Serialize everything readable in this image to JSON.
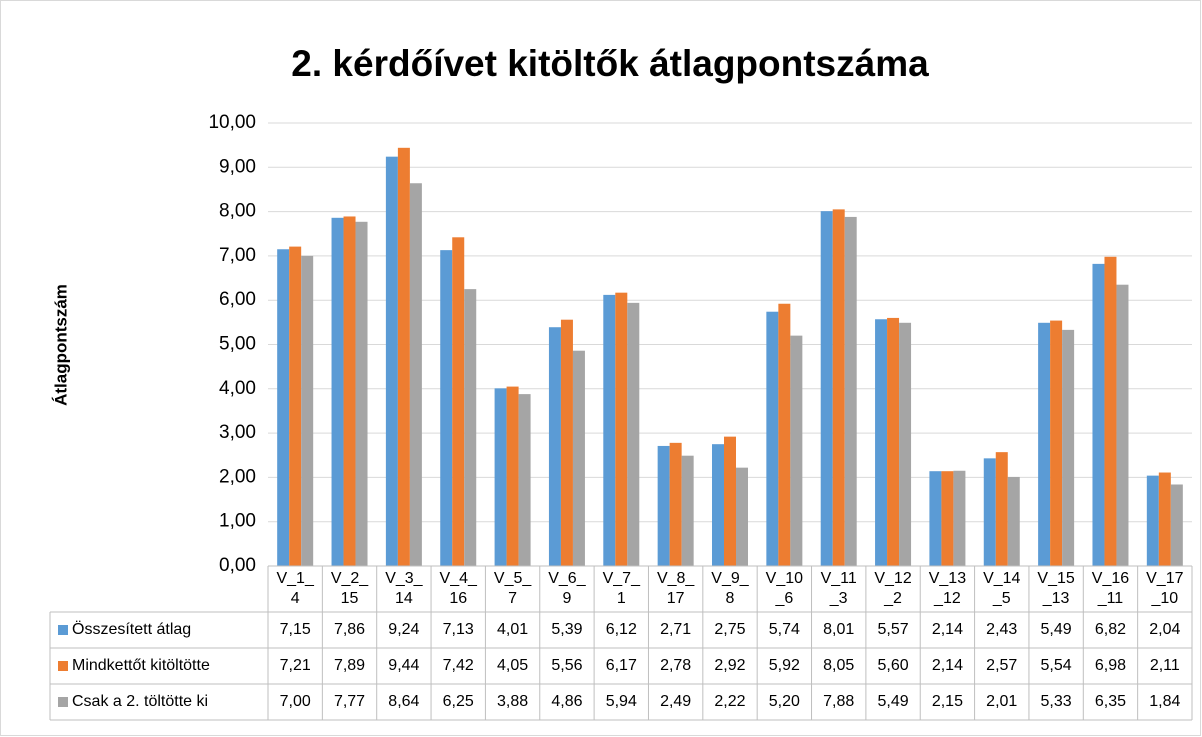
{
  "chart_data": {
    "type": "bar",
    "title": "2. kérdőívet kitöltők átlagpontszáma",
    "y_label": "Átlagpontszám",
    "categories": [
      "V_1_4",
      "V_2_15",
      "V_3_14",
      "V_4_16",
      "V_5_7",
      "V_6_9",
      "V_7_1",
      "V_8_17",
      "V_9_8",
      "V_10_6",
      "V_11_3",
      "V_12_2",
      "V_13_12",
      "V_14_5",
      "V_15_13",
      "V_16_11",
      "V_17_10"
    ],
    "series": [
      {
        "name": "Összesített átlag",
        "color": "#5b9bd5",
        "values": [
          7.15,
          7.86,
          9.24,
          7.13,
          4.01,
          5.39,
          6.12,
          2.71,
          2.75,
          5.74,
          8.01,
          5.57,
          2.14,
          2.43,
          5.49,
          6.82,
          2.04
        ],
        "value_labels": [
          "7,15",
          "7,86",
          "9,24",
          "7,13",
          "4,01",
          "5,39",
          "6,12",
          "2,71",
          "2,75",
          "5,74",
          "8,01",
          "5,57",
          "2,14",
          "2,43",
          "5,49",
          "6,82",
          "2,04"
        ]
      },
      {
        "name": "Mindkettőt kitöltötte",
        "color": "#ed7d31",
        "values": [
          7.21,
          7.89,
          9.44,
          7.42,
          4.05,
          5.56,
          6.17,
          2.78,
          2.92,
          5.92,
          8.05,
          5.6,
          2.14,
          2.57,
          5.54,
          6.98,
          2.11
        ],
        "value_labels": [
          "7,21",
          "7,89",
          "9,44",
          "7,42",
          "4,05",
          "5,56",
          "6,17",
          "2,78",
          "2,92",
          "5,92",
          "8,05",
          "5,60",
          "2,14",
          "2,57",
          "5,54",
          "6,98",
          "2,11"
        ]
      },
      {
        "name": "Csak a 2. töltötte ki",
        "color": "#a5a5a5",
        "values": [
          7.0,
          7.77,
          8.64,
          6.25,
          3.88,
          4.86,
          5.94,
          2.49,
          2.22,
          5.2,
          7.88,
          5.49,
          2.15,
          2.01,
          5.33,
          6.35,
          1.84
        ],
        "value_labels": [
          "7,00",
          "7,77",
          "8,64",
          "6,25",
          "3,88",
          "4,86",
          "5,94",
          "2,49",
          "2,22",
          "5,20",
          "7,88",
          "5,49",
          "2,15",
          "2,01",
          "5,33",
          "6,35",
          "1,84"
        ]
      }
    ],
    "ylim": [
      0,
      10
    ],
    "yticks": [
      {
        "value": 0,
        "label": "0,00"
      },
      {
        "value": 1,
        "label": "1,00"
      },
      {
        "value": 2,
        "label": "2,00"
      },
      {
        "value": 3,
        "label": "3,00"
      },
      {
        "value": 4,
        "label": "4,00"
      },
      {
        "value": 5,
        "label": "5,00"
      },
      {
        "value": 6,
        "label": "6,00"
      },
      {
        "value": 7,
        "label": "7,00"
      },
      {
        "value": 8,
        "label": "8,00"
      },
      {
        "value": 9,
        "label": "9,00"
      },
      {
        "value": 10,
        "label": "10,00"
      }
    ],
    "grid": true
  }
}
